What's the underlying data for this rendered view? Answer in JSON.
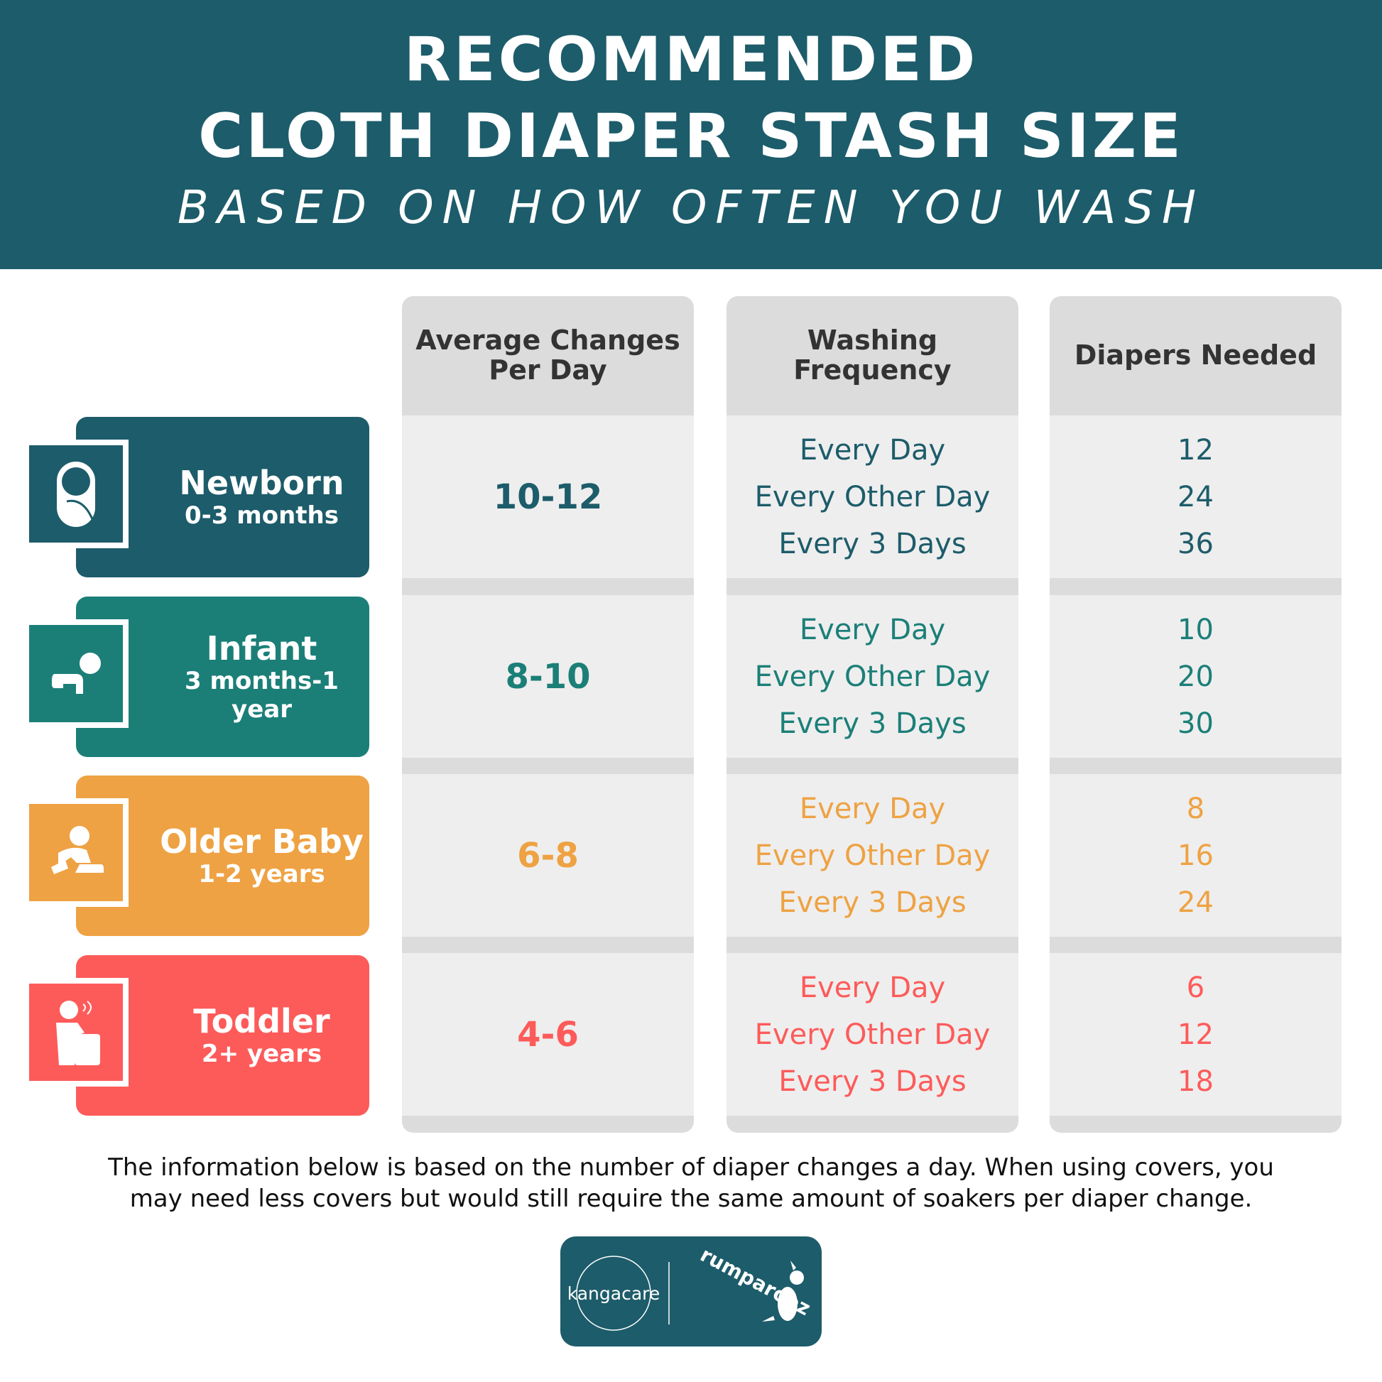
{
  "header": {
    "line1": "RECOMMENDED",
    "line2": "CLOTH DIAPER STASH SIZE",
    "line3": "BASED ON HOW OFTEN YOU WASH"
  },
  "columns": [
    "Average Changes Per Day",
    "Washing Frequency",
    "Diapers Needed"
  ],
  "rows": [
    {
      "name": "Newborn",
      "age": "0-3 months",
      "color": "#1d5c6a",
      "icon": "swaddled-baby-icon",
      "changes": "10-12",
      "freq": [
        "Every Day",
        "Every Other Day",
        "Every 3 Days"
      ],
      "diapers": [
        "12",
        "24",
        "36"
      ]
    },
    {
      "name": "Infant",
      "age": "3 months-1 year",
      "color": "#1b7f78",
      "icon": "crawling-baby-icon",
      "changes": "8-10",
      "freq": [
        "Every Day",
        "Every Other Day",
        "Every 3 Days"
      ],
      "diapers": [
        "10",
        "20",
        "30"
      ]
    },
    {
      "name": "Older Baby",
      "age": "1-2 years",
      "color": "#eea243",
      "icon": "sitting-baby-icon",
      "changes": "6-8",
      "freq": [
        "Every Day",
        "Every Other Day",
        "Every 3 Days"
      ],
      "diapers": [
        "8",
        "16",
        "24"
      ]
    },
    {
      "name": "Toddler",
      "age": "2+ years",
      "color": "#fd5b5a",
      "icon": "toddler-icon",
      "changes": "4-6",
      "freq": [
        "Every Day",
        "Every Other Day",
        "Every 3 Days"
      ],
      "diapers": [
        "6",
        "12",
        "18"
      ]
    }
  ],
  "footnote": {
    "line1": "The information below is based on the number of diaper changes a day. When using covers, you",
    "line2": "may need less covers but would still require the same amount of soakers per diaper change."
  },
  "logos": {
    "left": "kangacare",
    "right": "rumparooz"
  }
}
